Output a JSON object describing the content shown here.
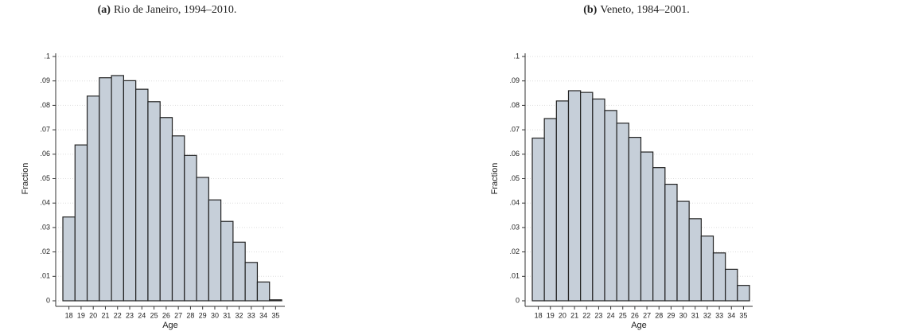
{
  "chart_data": [
    {
      "type": "bar",
      "label": "(a)",
      "title": "Rio de Janeiro, 1994–2010.",
      "xlabel": "Age",
      "ylabel": "Fraction",
      "categories": [
        "18",
        "19",
        "20",
        "21",
        "22",
        "23",
        "24",
        "25",
        "26",
        "27",
        "28",
        "29",
        "30",
        "31",
        "32",
        "33",
        "34",
        "35"
      ],
      "values": [
        0.0343,
        0.0638,
        0.0838,
        0.0913,
        0.0922,
        0.0901,
        0.0866,
        0.0815,
        0.075,
        0.0675,
        0.0595,
        0.0505,
        0.0413,
        0.0325,
        0.024,
        0.0157,
        0.0077,
        0.0004
      ],
      "color": "#c6cfd9",
      "ylim": [
        0,
        0.1
      ],
      "yticks": [
        0,
        {
          "value": 0.01,
          "label": ".01"
        },
        {
          "value": 0.02,
          "label": ".02"
        },
        {
          "value": 0.03,
          "label": ".03"
        },
        {
          "value": 0.04,
          "label": ".04"
        },
        {
          "value": 0.05,
          "label": ".05"
        },
        {
          "value": 0.06,
          "label": ".06"
        },
        {
          "value": 0.07,
          "label": ".07"
        },
        {
          "value": 0.08,
          "label": ".08"
        },
        {
          "value": 0.09,
          "label": ".09"
        },
        {
          "value": 0.1,
          "label": ".1"
        }
      ],
      "grid": true
    },
    {
      "type": "bar",
      "label": "(b)",
      "title": "Veneto, 1984–2001.",
      "xlabel": "Age",
      "ylabel": "Fraction",
      "categories": [
        "18",
        "19",
        "20",
        "21",
        "22",
        "23",
        "24",
        "25",
        "26",
        "27",
        "28",
        "29",
        "30",
        "31",
        "32",
        "33",
        "34",
        "35"
      ],
      "values": [
        0.0666,
        0.0746,
        0.0818,
        0.086,
        0.0853,
        0.0826,
        0.0779,
        0.0727,
        0.0669,
        0.0609,
        0.0545,
        0.0477,
        0.0407,
        0.0336,
        0.0265,
        0.0196,
        0.0129,
        0.0063
      ],
      "color": "#c6cfd9",
      "ylim": [
        0,
        0.1
      ],
      "yticks": [
        0,
        {
          "value": 0.01,
          "label": ".01"
        },
        {
          "value": 0.02,
          "label": ".02"
        },
        {
          "value": 0.03,
          "label": ".03"
        },
        {
          "value": 0.04,
          "label": ".04"
        },
        {
          "value": 0.05,
          "label": ".05"
        },
        {
          "value": 0.06,
          "label": ".06"
        },
        {
          "value": 0.07,
          "label": ".07"
        },
        {
          "value": 0.08,
          "label": ".08"
        },
        {
          "value": 0.09,
          "label": ".09"
        },
        {
          "value": 0.1,
          "label": ".1"
        }
      ],
      "grid": true
    }
  ]
}
